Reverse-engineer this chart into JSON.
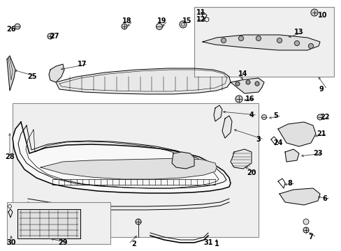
{
  "bg_color": "#ffffff",
  "fig_width": 4.89,
  "fig_height": 3.6,
  "dpi": 100,
  "line_color": "#000000",
  "label_fontsize": 7.0,
  "lw": 0.7
}
